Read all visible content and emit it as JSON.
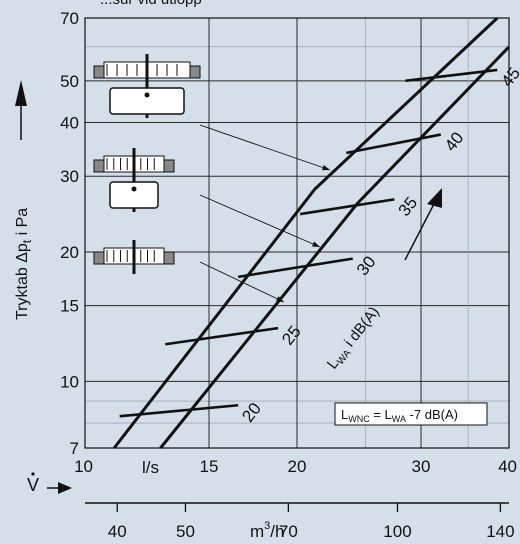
{
  "chart_data": {
    "type": "line",
    "title_partial": "...sur vid utlopp",
    "y_axis": {
      "label": "Tryktab  Δp",
      "label_sub": "t",
      "label_unit": " i Pa",
      "scale": "log",
      "range": [
        7,
        70
      ],
      "ticks": [
        7,
        10,
        15,
        20,
        30,
        40,
        50,
        70
      ]
    },
    "x_axis": {
      "symbol": "V",
      "unit": "l/s",
      "scale": "log",
      "range": [
        10,
        40
      ],
      "ticks": [
        10,
        15,
        20,
        30,
        40
      ]
    },
    "x2_axis": {
      "unit_pre": "m",
      "unit_sup": "3",
      "unit_post": "/h",
      "ticks": [
        40,
        50,
        70,
        100,
        140
      ],
      "tick_labels": [
        "40",
        "50",
        "70",
        "100",
        "140"
      ]
    },
    "grid": true,
    "series": [
      {
        "name": "damper_high",
        "points": [
          [
            11.0,
            7.0
          ],
          [
            21.2,
            28.0
          ],
          [
            38.5,
            70.0
          ]
        ]
      },
      {
        "name": "damper_low",
        "points": [
          [
            12.8,
            7.0
          ],
          [
            24.4,
            26.0
          ],
          [
            40.0,
            60.0
          ]
        ]
      }
    ],
    "sound_lines": [
      {
        "label": "20",
        "values": [
          [
            11.2,
            8.3
          ],
          [
            16.5,
            8.8
          ]
        ]
      },
      {
        "label": "25",
        "values": [
          [
            13.0,
            12.2
          ],
          [
            18.8,
            13.3
          ]
        ]
      },
      {
        "label": "30",
        "values": [
          [
            16.5,
            17.5
          ],
          [
            24.0,
            19.3
          ]
        ]
      },
      {
        "label": "35",
        "values": [
          [
            20.2,
            24.5
          ],
          [
            27.5,
            26.5
          ]
        ]
      },
      {
        "label": "40",
        "values": [
          [
            23.5,
            34.0
          ],
          [
            32.0,
            37.5
          ]
        ]
      },
      {
        "label": "45",
        "values": [
          [
            28.5,
            50.0
          ],
          [
            38.5,
            53.0
          ]
        ]
      }
    ],
    "annotations": {
      "lwa_label": "L",
      "lwa_sub": "WA",
      "lwa_post": " i dB(A)",
      "formula": {
        "l1": "L",
        "s1": "WNC",
        "mid": " = L",
        "s2": "WA",
        "post": " -7 dB(A)"
      }
    }
  }
}
